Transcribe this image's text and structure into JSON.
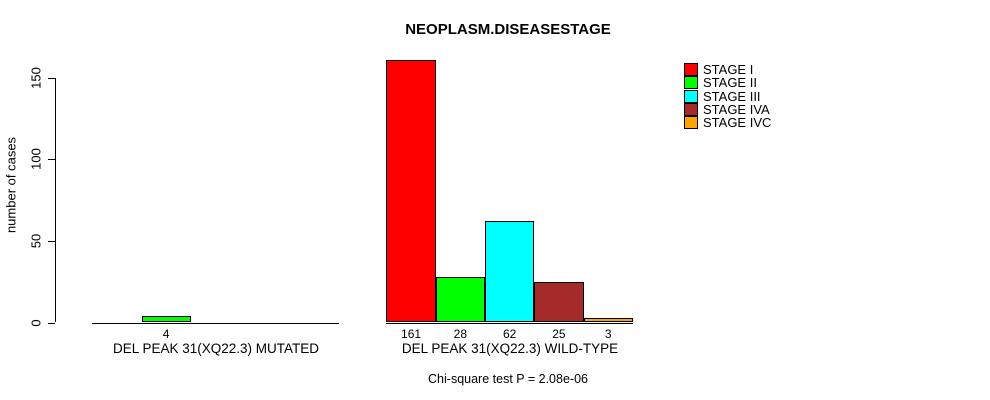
{
  "chart_data": {
    "type": "bar",
    "title": "NEOPLASM.DISEASESTAGE",
    "ylabel": "number of cases",
    "xlabel": "",
    "caption": "Chi-square test P = 2.08e-06",
    "groups": [
      "DEL PEAK 31(XQ22.3) MUTATED",
      "DEL PEAK 31(XQ22.3) WILD-TYPE"
    ],
    "series": [
      {
        "name": "STAGE I",
        "color": "#FF0000",
        "values": [
          0,
          161
        ]
      },
      {
        "name": "STAGE II",
        "color": "#00FF00",
        "values": [
          4,
          28
        ]
      },
      {
        "name": "STAGE III",
        "color": "#00FFFF",
        "values": [
          0,
          62
        ]
      },
      {
        "name": "STAGE IVA",
        "color": "#A52A2A",
        "values": [
          0,
          25
        ]
      },
      {
        "name": "STAGE IVC",
        "color": "#FFA500",
        "values": [
          0,
          3
        ]
      }
    ],
    "y_ticks": [
      0,
      50,
      100,
      150
    ],
    "ylim": [
      0,
      161
    ],
    "grid": false,
    "legend_position": "top-right",
    "bar_value_labels": "shown under each nonzero bar",
    "axis_color": "#000000",
    "background_color": "#FFFFFF"
  }
}
